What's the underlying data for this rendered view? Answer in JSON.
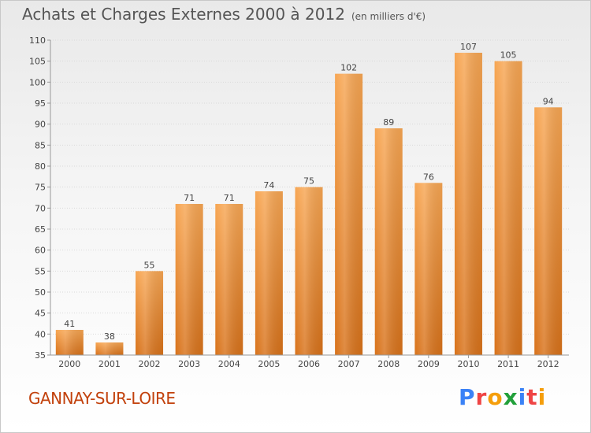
{
  "header": {
    "title": "Achats et Charges Externes 2000 à 2012",
    "unit": "(en milliers d'€)"
  },
  "footer": {
    "city": "GANNAY-SUR-LOIRE",
    "brand": "Proxiti",
    "brand_colors": [
      "#3b82f6",
      "#ef4444",
      "#f59e0b",
      "#22a03a",
      "#3b82f6",
      "#ef4444",
      "#f59e0b"
    ]
  },
  "chart_data": {
    "type": "bar",
    "title": "Achats et Charges Externes 2000 à 2012",
    "subtitle": "(en milliers d'€)",
    "xlabel": "",
    "ylabel": "",
    "categories": [
      "2000",
      "2001",
      "2002",
      "2003",
      "2004",
      "2005",
      "2006",
      "2007",
      "2008",
      "2009",
      "2010",
      "2011",
      "2012"
    ],
    "values": [
      41,
      38,
      55,
      71,
      71,
      74,
      75,
      102,
      89,
      76,
      107,
      105,
      94
    ],
    "ylim": [
      35,
      110
    ],
    "yticks": [
      35,
      40,
      45,
      50,
      55,
      60,
      65,
      70,
      75,
      80,
      85,
      90,
      95,
      100,
      105,
      110
    ],
    "grid": true,
    "bar_color": "#f08a2c",
    "bar_color_dark": "#c8650f"
  }
}
